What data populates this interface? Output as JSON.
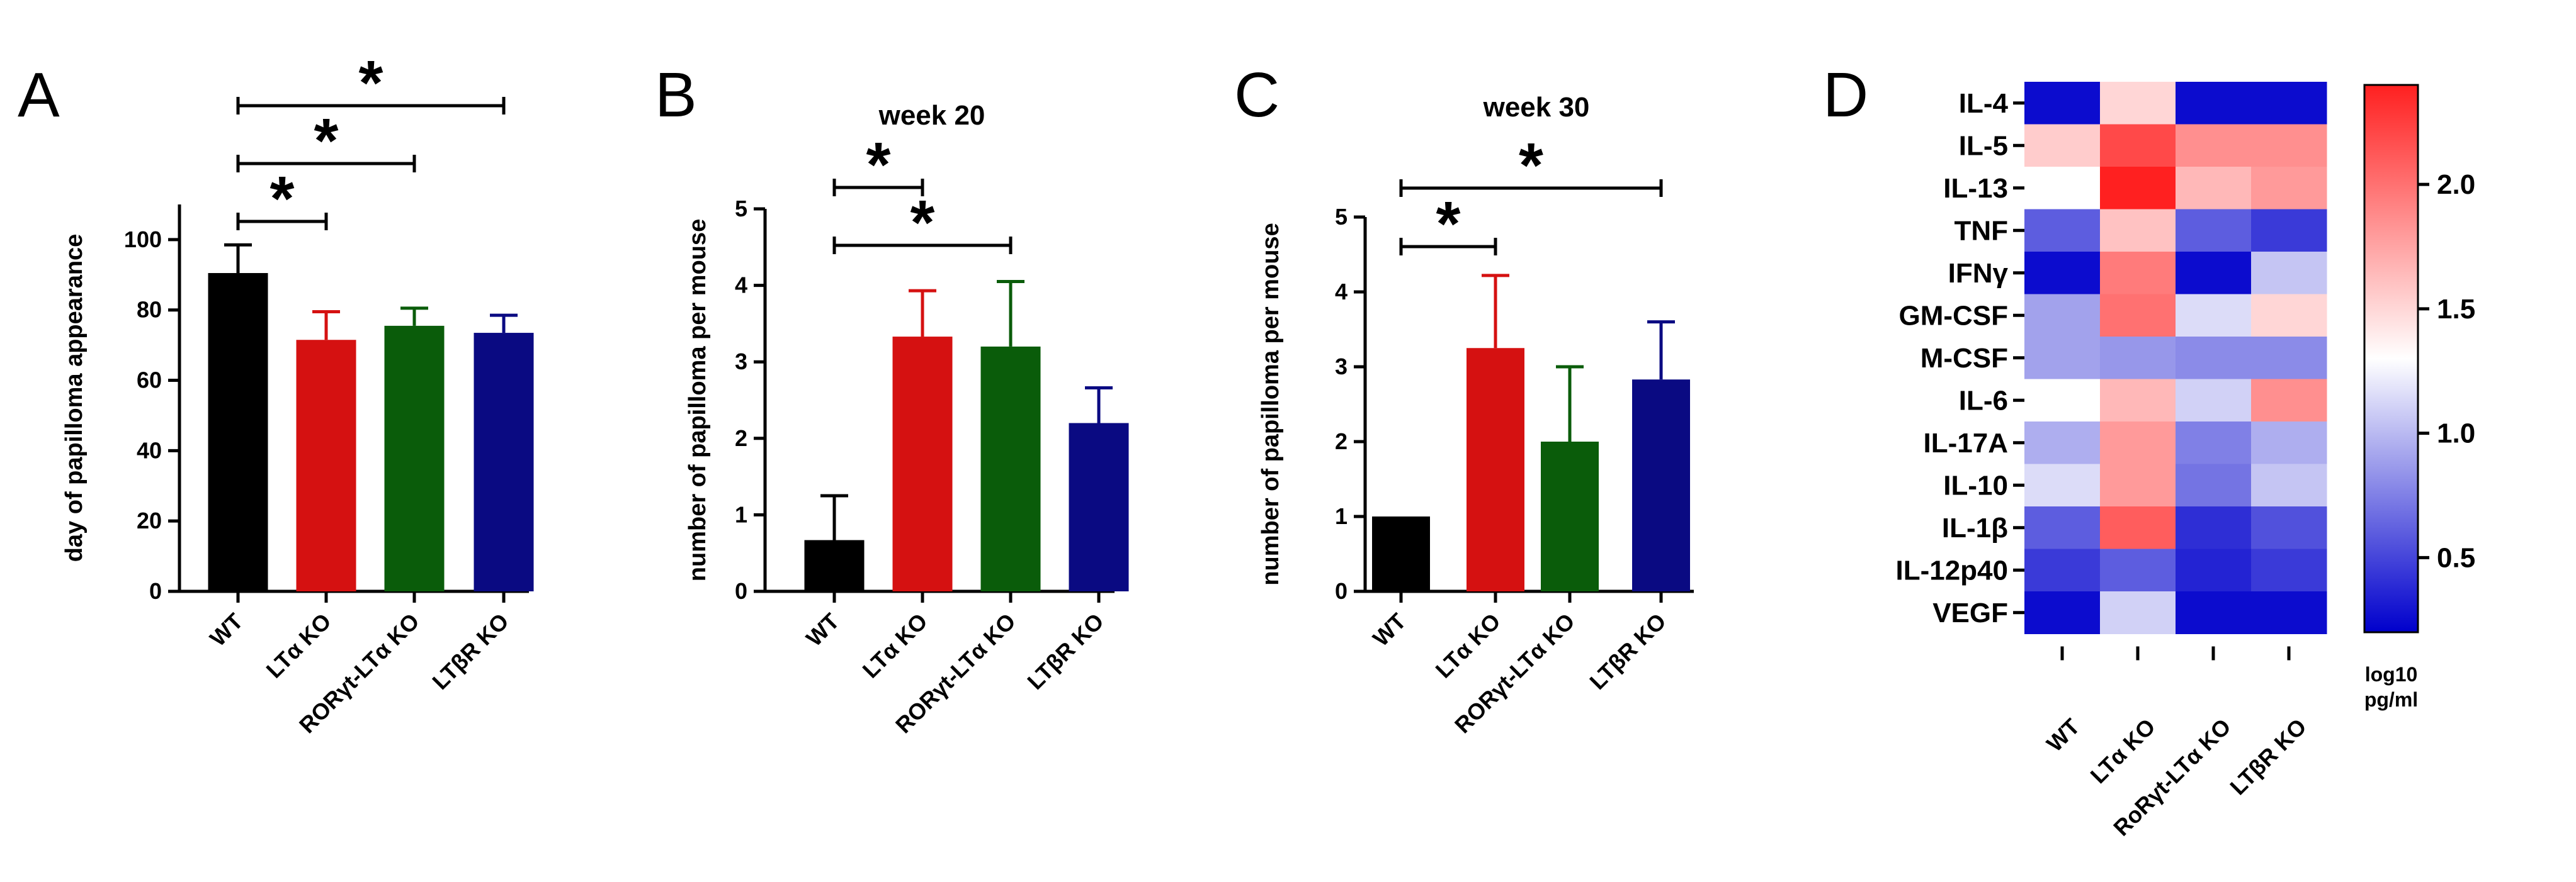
{
  "chart_data": [
    {
      "panel": "A",
      "type": "bar",
      "title": "",
      "ylabel": "day of papilloma appearance",
      "xlabel": "",
      "ylim": [
        0,
        110
      ],
      "yticks": [
        "0",
        "20",
        "40",
        "60",
        "80",
        "100"
      ],
      "categories": [
        "WT",
        "LTα KO",
        "RORγt-LTα KO",
        "LTβR KO"
      ],
      "values": [
        90.5,
        71.5,
        75.5,
        73.5
      ],
      "errors": [
        8,
        8,
        5,
        5
      ],
      "colors": [
        "#000000",
        "#d51111",
        "#0a5c0a",
        "#0a0a82"
      ],
      "significance": [
        {
          "from": 0,
          "to": 1,
          "label": "*",
          "level": 0
        },
        {
          "from": 0,
          "to": 2,
          "label": "*",
          "level": 1
        },
        {
          "from": 0,
          "to": 3,
          "label": "*",
          "level": 2
        }
      ]
    },
    {
      "panel": "B",
      "type": "bar",
      "title": "week 20",
      "ylabel": "number of papilloma per mouse",
      "xlabel": "",
      "ylim": [
        0,
        5
      ],
      "yticks": [
        "0",
        "1",
        "2",
        "3",
        "4",
        "5"
      ],
      "categories": [
        "WT",
        "LTα KO",
        "RORγt-LTα KO",
        "LTβR KO"
      ],
      "values": [
        0.67,
        3.33,
        3.2,
        2.2
      ],
      "errors": [
        0.58,
        0.6,
        0.85,
        0.46
      ],
      "colors": [
        "#000000",
        "#d51111",
        "#0a5c0a",
        "#0a0a82"
      ],
      "significance": [
        {
          "from": 0,
          "to": 1,
          "label": "*",
          "level": 1
        },
        {
          "from": 0,
          "to": 2,
          "label": "*",
          "level": 0
        }
      ]
    },
    {
      "panel": "C",
      "type": "bar",
      "title": "week 30",
      "ylabel": "number of papilloma per mouse",
      "xlabel": "",
      "ylim": [
        0,
        5
      ],
      "yticks": [
        "0",
        "1",
        "2",
        "3",
        "4",
        "5"
      ],
      "categories": [
        "WT",
        "LTα KO",
        "RORγt-LTα KO",
        "LTβR KO"
      ],
      "values": [
        1.0,
        3.25,
        2.0,
        2.83
      ],
      "errors": [
        0,
        0.97,
        1.0,
        0.77
      ],
      "colors": [
        "#000000",
        "#d51111",
        "#0a5c0a",
        "#0a0a82"
      ],
      "significance": [
        {
          "from": 0,
          "to": 1,
          "label": "*",
          "level": 0
        },
        {
          "from": 0,
          "to": 3,
          "label": "*",
          "level": 1
        }
      ]
    },
    {
      "panel": "D",
      "type": "heatmap",
      "title": "",
      "columns": [
        "WT",
        "LTα KO",
        "RoRγt-LTα KO",
        "LTβR KO"
      ],
      "rows": [
        "IL-4",
        "IL-5",
        "IL-13",
        "TNF",
        "IFNγ",
        "GM-CSF",
        "M-CSF",
        "IL-6",
        "IL-17A",
        "IL-10",
        "IL-1β",
        "IL-12p40",
        "VEGF"
      ],
      "values": [
        [
          0.25,
          1.5,
          0.25,
          0.25
        ],
        [
          1.55,
          2.2,
          1.85,
          1.85
        ],
        [
          1.3,
          2.4,
          1.65,
          1.8
        ],
        [
          0.6,
          1.6,
          0.6,
          0.45
        ],
        [
          0.25,
          1.95,
          0.25,
          1.05
        ],
        [
          0.9,
          2.0,
          1.15,
          1.5
        ],
        [
          0.9,
          0.85,
          0.8,
          0.8
        ],
        [
          1.3,
          1.65,
          1.1,
          1.85
        ],
        [
          0.95,
          1.8,
          0.75,
          0.95
        ],
        [
          1.15,
          1.8,
          0.7,
          1.05
        ],
        [
          0.6,
          2.1,
          0.4,
          0.55
        ],
        [
          0.45,
          0.6,
          0.35,
          0.45
        ],
        [
          0.25,
          1.1,
          0.25,
          0.25
        ]
      ],
      "colorbar": {
        "range": [
          0.2,
          2.4
        ],
        "ticks": [
          0.5,
          1.0,
          1.5,
          2.0
        ],
        "tick_labels": [
          "0.5",
          "1.0",
          "1.5",
          "2.0"
        ],
        "title_lines": [
          "log10",
          "pg/ml"
        ],
        "low_color": "#0000cc",
        "mid_color": "#ffffff",
        "high_color": "#ff2020",
        "mid_value": 1.3
      }
    }
  ]
}
